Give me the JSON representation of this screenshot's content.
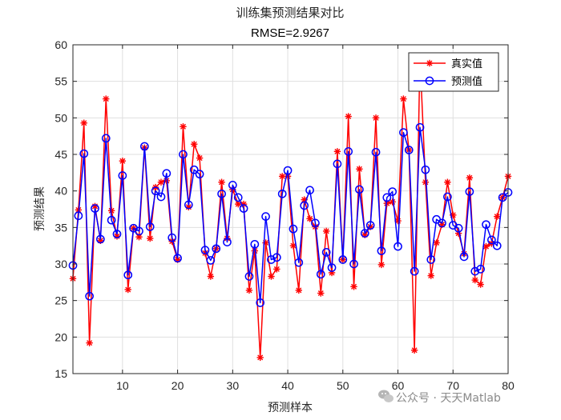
{
  "chart_data": {
    "type": "line",
    "title": "训练集预测结果对比",
    "subtitle": "RMSE=2.9267",
    "xlabel": "预测样本",
    "ylabel": "预测结果",
    "xlim": [
      1,
      80
    ],
    "ylim": [
      15,
      60
    ],
    "xticks": [
      10,
      20,
      30,
      40,
      50,
      60,
      70,
      80
    ],
    "yticks": [
      15,
      20,
      25,
      30,
      35,
      40,
      45,
      50,
      55,
      60
    ],
    "grid": true,
    "legend_position": "top-right",
    "x": [
      1,
      2,
      3,
      4,
      5,
      6,
      7,
      8,
      9,
      10,
      11,
      12,
      13,
      14,
      15,
      16,
      17,
      18,
      19,
      20,
      21,
      22,
      23,
      24,
      25,
      26,
      27,
      28,
      29,
      30,
      31,
      32,
      33,
      34,
      35,
      36,
      37,
      38,
      39,
      40,
      41,
      42,
      43,
      44,
      45,
      46,
      47,
      48,
      49,
      50,
      51,
      52,
      53,
      54,
      55,
      56,
      57,
      58,
      59,
      60,
      61,
      62,
      63,
      64,
      65,
      66,
      67,
      68,
      69,
      70,
      71,
      72,
      73,
      74,
      75,
      76,
      77,
      78,
      79,
      80
    ],
    "series": [
      {
        "name": "真实值",
        "color": "#ff0000",
        "marker": "asterisk",
        "values": [
          28.0,
          37.4,
          49.3,
          19.2,
          37.9,
          33.2,
          52.6,
          37.3,
          33.8,
          44.1,
          26.5,
          34.9,
          33.7,
          45.9,
          33.5,
          40.5,
          41.2,
          41.4,
          33.1,
          30.6,
          48.8,
          37.8,
          46.4,
          44.5,
          31.5,
          28.3,
          32.1,
          41.2,
          33.5,
          40.2,
          38.2,
          38.2,
          26.4,
          31.8,
          17.2,
          32.9,
          28.3,
          29.3,
          42.0,
          42.0,
          32.5,
          26.4,
          38.8,
          36.2,
          35.1,
          26.0,
          34.5,
          28.8,
          45.4,
          30.6,
          50.2,
          26.9,
          43.0,
          34.0,
          35.1,
          50.0,
          29.9,
          38.3,
          38.5,
          35.9,
          52.6,
          45.6,
          18.2,
          58.4,
          41.2,
          28.4,
          32.9,
          35.4,
          41.2,
          36.7,
          34.2,
          31.4,
          41.8,
          27.8,
          27.2,
          32.4,
          32.8,
          36.5,
          39.1,
          42.0
        ]
      },
      {
        "name": "预测值",
        "color": "#0000ff",
        "marker": "circle",
        "values": [
          29.8,
          36.6,
          45.1,
          25.6,
          37.6,
          33.4,
          47.2,
          36.0,
          34.1,
          42.1,
          28.5,
          34.9,
          34.5,
          46.1,
          35.1,
          40.0,
          39.2,
          42.4,
          33.6,
          30.8,
          45.0,
          38.1,
          42.9,
          42.3,
          31.9,
          30.5,
          32.1,
          39.6,
          33.0,
          40.8,
          39.1,
          37.6,
          28.3,
          32.7,
          24.7,
          36.5,
          30.6,
          30.9,
          39.6,
          42.8,
          34.8,
          30.2,
          38.0,
          40.1,
          35.6,
          28.6,
          31.6,
          29.5,
          43.7,
          30.6,
          45.4,
          30.0,
          40.2,
          34.2,
          35.3,
          45.3,
          31.8,
          39.1,
          39.9,
          32.4,
          48.0,
          45.6,
          29.0,
          48.7,
          42.9,
          30.6,
          36.1,
          35.6,
          39.2,
          35.3,
          34.9,
          31.0,
          39.9,
          29.0,
          29.3,
          35.4,
          33.3,
          32.5,
          39.1,
          39.8
        ]
      }
    ]
  },
  "watermark": "公众号 · 天天Matlab"
}
